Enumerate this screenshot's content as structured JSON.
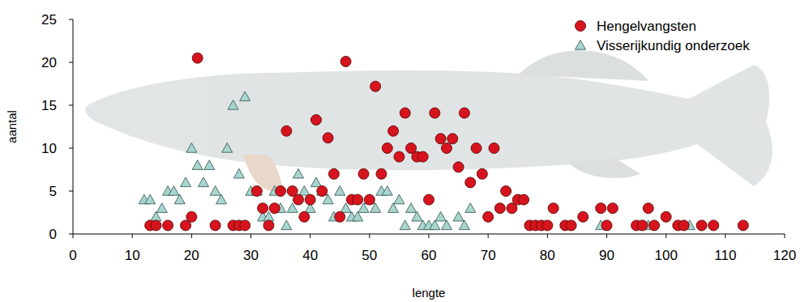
{
  "chart_data": {
    "type": "scatter",
    "x_label": "lengte",
    "y_label": "aantal",
    "xlim": [
      0,
      120
    ],
    "xticks": [
      0,
      10,
      20,
      30,
      40,
      50,
      60,
      70,
      80,
      90,
      100,
      110,
      120
    ],
    "ylim": [
      0,
      25
    ],
    "yticks": [
      0,
      5,
      10,
      15,
      20,
      25
    ],
    "grid": false,
    "legend": "upper right",
    "series": [
      {
        "name": "Hengelvangsten",
        "color": "#d7141e",
        "marker": "circle",
        "x": [
          13,
          14,
          16,
          19,
          20,
          21,
          24,
          27,
          28,
          29,
          31,
          32,
          33,
          34,
          35,
          36,
          37,
          38,
          39,
          40,
          41,
          42,
          43,
          44,
          45,
          46,
          47,
          48,
          49,
          50,
          51,
          52,
          53,
          54,
          55,
          56,
          57,
          58,
          59,
          60,
          61,
          62,
          63,
          64,
          65,
          66,
          67,
          68,
          69,
          70,
          71,
          72,
          73,
          74,
          75,
          76,
          77,
          78,
          79,
          80,
          81,
          83,
          84,
          86,
          89,
          90,
          91,
          95,
          96,
          97,
          98,
          100,
          102,
          103,
          106,
          108,
          113
        ],
        "values": [
          1,
          1,
          1,
          1,
          2,
          20.5,
          1,
          1,
          1,
          1,
          5,
          3,
          1,
          3,
          5,
          12,
          5,
          4,
          2,
          4,
          13.3,
          5,
          11.2,
          7,
          2,
          20.1,
          4,
          4,
          7,
          4,
          17.2,
          7,
          10,
          12,
          9,
          14.1,
          10,
          9,
          9,
          4,
          14.1,
          11.1,
          10,
          11.1,
          7.8,
          14.1,
          6,
          10,
          7,
          2,
          10,
          3,
          5,
          3,
          4,
          4,
          1,
          1,
          1,
          1,
          3,
          1,
          1,
          2,
          3,
          1,
          3,
          1,
          1,
          3,
          1,
          2,
          1,
          1,
          1,
          1,
          1
        ]
      },
      {
        "name": "Visserijkundig onderzoek",
        "color": "#a8d5cf",
        "marker": "triangle",
        "x": [
          12,
          13,
          14,
          15,
          16,
          17,
          18,
          19,
          20,
          21,
          22,
          23,
          24,
          25,
          26,
          27,
          28,
          29,
          30,
          31,
          32,
          33,
          34,
          35,
          36,
          37,
          38,
          39,
          40,
          41,
          42,
          43,
          44,
          45,
          46,
          47,
          48,
          49,
          50,
          51,
          52,
          53,
          54,
          55,
          56,
          57,
          58,
          59,
          60,
          61,
          62,
          63,
          65,
          66,
          67,
          89,
          97,
          104
        ],
        "values": [
          4,
          4,
          2,
          3,
          5,
          5,
          4,
          6,
          10,
          8,
          6,
          8,
          5,
          4,
          10,
          15,
          7,
          16,
          5,
          5,
          2,
          2,
          5,
          3,
          1,
          3,
          7,
          5,
          3,
          6,
          5,
          4,
          2,
          5,
          3,
          2,
          2,
          3,
          4,
          3,
          5,
          5,
          3,
          4,
          1,
          3,
          2,
          1,
          1,
          1,
          2,
          1,
          2,
          1,
          3,
          1,
          1,
          1
        ]
      }
    ]
  }
}
